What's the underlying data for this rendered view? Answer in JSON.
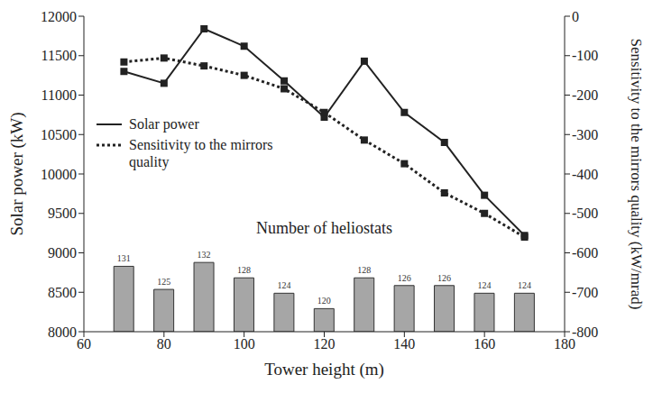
{
  "chart_data": [
    {
      "type": "line",
      "xlabel": "Tower height (m)",
      "ylabel": "Solar power (kW)",
      "y2label": "Sensitivity to the mirrors quality (kW/mrad)",
      "x": [
        70,
        80,
        90,
        100,
        110,
        120,
        130,
        140,
        150,
        160,
        170
      ],
      "xlim": [
        60,
        180
      ],
      "xticks": [
        60,
        80,
        100,
        120,
        140,
        160,
        180
      ],
      "ylim": [
        8000,
        12000
      ],
      "yticks": [
        8000,
        8500,
        9000,
        9500,
        10000,
        10500,
        11000,
        11500,
        12000
      ],
      "y2lim": [
        -800,
        0
      ],
      "y2ticks": [
        -800,
        -700,
        -600,
        -500,
        -400,
        -300,
        -200,
        -100,
        0
      ],
      "grid": false,
      "legend": "upper left",
      "series": [
        {
          "name": "Solar power",
          "color": "#222222",
          "marker": "square",
          "line_style": "solid",
          "values": [
            11300,
            11150,
            11840,
            11620,
            11180,
            10720,
            11430,
            10780,
            10400,
            9730,
            9220
          ]
        },
        {
          "name": "Sensitivity to the mirrors quality",
          "color": "#222222",
          "marker": "square",
          "line_style": "dotted",
          "axis": "y2",
          "values": [
            -116,
            -106,
            -126,
            -150,
            -184,
            -244,
            -314,
            -374,
            -448,
            -500,
            -560
          ]
        }
      ]
    },
    {
      "type": "bar",
      "title": "Number of heliostats",
      "x": [
        70,
        80,
        90,
        100,
        110,
        120,
        130,
        140,
        150,
        160,
        170
      ],
      "values": [
        131,
        125,
        132,
        128,
        124,
        120,
        128,
        126,
        126,
        124,
        124
      ],
      "color": "#a6a6a6",
      "xlim": [
        60,
        180
      ],
      "ylim": [
        114,
        196
      ],
      "data_labels": true,
      "tick_labels": false
    }
  ]
}
